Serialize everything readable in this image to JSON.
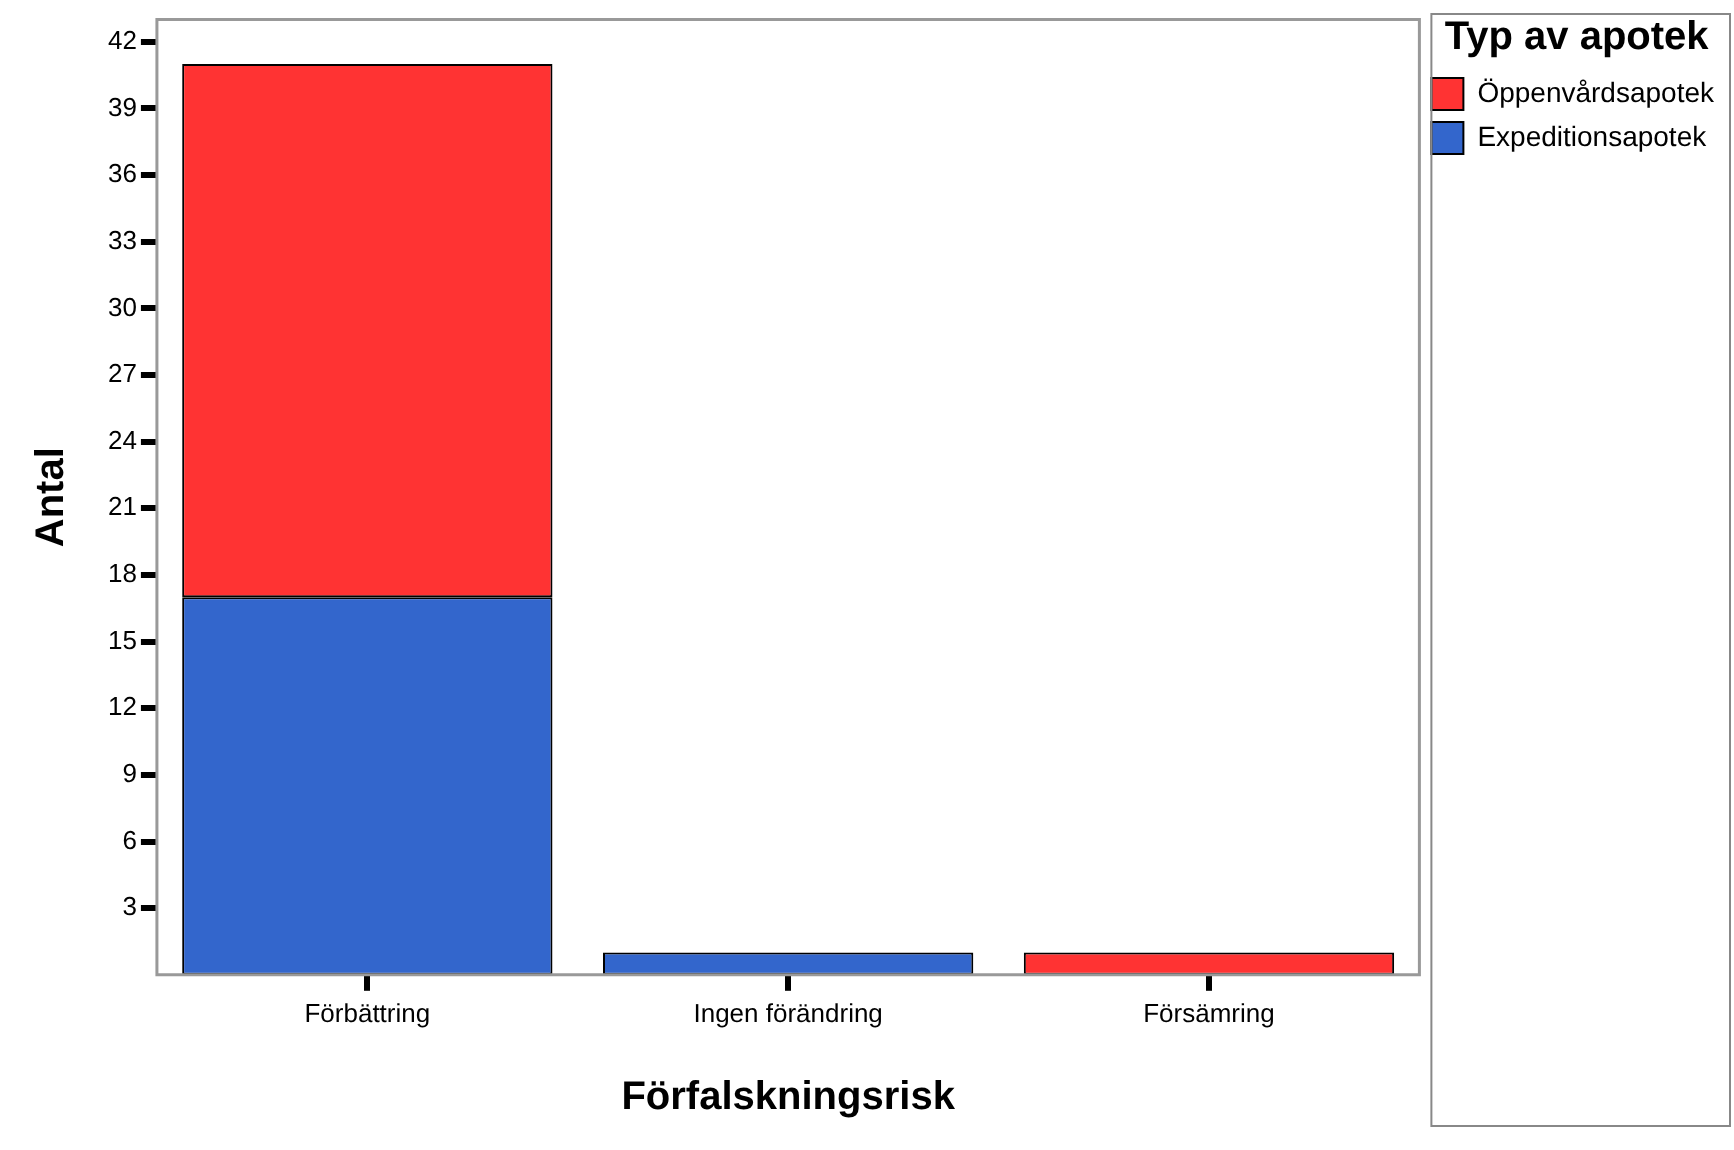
{
  "chart_data": {
    "type": "bar",
    "xlabel": "Förfalskningsrisk",
    "ylabel": "Antal",
    "legend_title": "Typ av apotek",
    "categories": [
      "Förbättring",
      "Ingen förändring",
      "Försämring"
    ],
    "series": [
      {
        "name": "Expeditionsapotek",
        "color": "#3366cc",
        "values": [
          17,
          1,
          null
        ]
      },
      {
        "name": "Öppenvårdsapotek",
        "color": "#ff3333",
        "values": [
          24,
          null,
          1
        ]
      }
    ],
    "stacked": true,
    "ylim": [
      0,
      43
    ],
    "yticks": [
      3,
      6,
      9,
      12,
      15,
      18,
      21,
      24,
      27,
      30,
      33,
      36,
      39,
      42
    ],
    "grid": false,
    "legend": "top right"
  }
}
